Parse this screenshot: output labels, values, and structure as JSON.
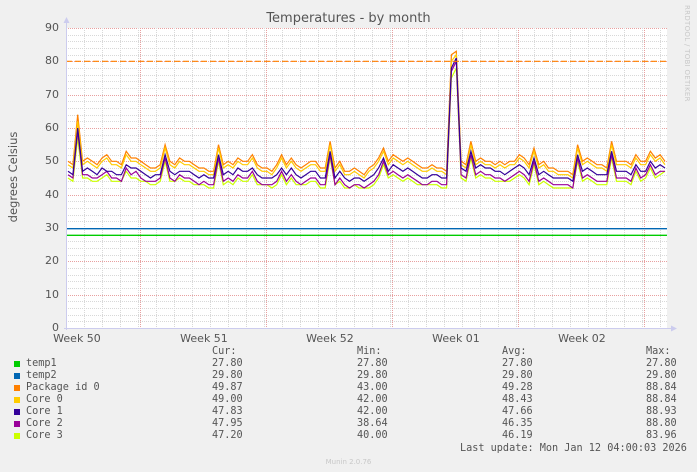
{
  "title": "Temperatures - by month",
  "y_axis_label": "degrees Celsius",
  "watermark": "RRDTOOL / TOBI OETIKER",
  "footer": "Munin 2.0.76",
  "last_update": "Last update: Mon Jan 12 04:00:03 2026",
  "legend_headers": {
    "cur": "Cur:",
    "min": "Min:",
    "avg": "Avg:",
    "max": "Max:"
  },
  "legend": [
    {
      "name": "temp1",
      "color": "#00cc00",
      "cur": "27.80",
      "min": "27.80",
      "avg": "27.80",
      "max": "27.80"
    },
    {
      "name": "temp2",
      "color": "#0066b3",
      "cur": "29.80",
      "min": "29.80",
      "avg": "29.80",
      "max": "29.80"
    },
    {
      "name": "Package id 0",
      "color": "#ff8000",
      "cur": "49.87",
      "min": "43.00",
      "avg": "49.28",
      "max": "88.84"
    },
    {
      "name": "Core 0",
      "color": "#ffcc00",
      "cur": "49.00",
      "min": "42.00",
      "avg": "48.43",
      "max": "88.84"
    },
    {
      "name": "Core 1",
      "color": "#330099",
      "cur": "47.83",
      "min": "42.00",
      "avg": "47.66",
      "max": "88.93"
    },
    {
      "name": "Core 2",
      "color": "#990099",
      "cur": "47.95",
      "min": "38.64",
      "avg": "46.35",
      "max": "88.80"
    },
    {
      "name": "Core 3",
      "color": "#ccff00",
      "cur": "47.20",
      "min": "40.00",
      "avg": "46.19",
      "max": "83.96"
    }
  ],
  "chart_data": {
    "type": "line",
    "title": "Temperatures - by month",
    "xlabel": "",
    "ylabel": "degrees Celsius",
    "ylim": [
      0,
      90
    ],
    "yticks": [
      0,
      10,
      20,
      30,
      40,
      50,
      60,
      70,
      80,
      90
    ],
    "xticks": [
      "Week 50",
      "Week 51",
      "Week 52",
      "Week 01",
      "Week 02"
    ],
    "grid": true,
    "threshold_line": {
      "value": 80,
      "color": "#ff8000",
      "style": "dashed"
    },
    "series": [
      {
        "name": "temp1",
        "color": "#00cc00",
        "constant": 27.8
      },
      {
        "name": "temp2",
        "color": "#0066b3",
        "constant": 29.8
      },
      {
        "name": "Package id 0",
        "color": "#ff8000",
        "values": [
          50,
          49,
          64,
          50,
          51,
          50,
          49,
          51,
          52,
          50,
          50,
          49,
          53,
          51,
          51,
          50,
          49,
          48,
          48,
          49,
          55,
          50,
          49,
          51,
          50,
          50,
          49,
          48,
          48,
          47,
          47,
          55,
          49,
          50,
          49,
          51,
          50,
          50,
          52,
          49,
          48,
          48,
          47,
          49,
          52,
          49,
          51,
          49,
          48,
          49,
          50,
          50,
          48,
          48,
          56,
          48,
          50,
          47,
          47,
          48,
          47,
          46,
          48,
          49,
          51,
          54,
          50,
          52,
          51,
          50,
          51,
          50,
          49,
          48,
          48,
          49,
          48,
          48,
          47,
          82,
          83,
          50,
          49,
          56,
          50,
          51,
          50,
          50,
          49,
          50,
          49,
          50,
          50,
          52,
          51,
          49,
          54,
          49,
          50,
          48,
          48,
          47,
          47,
          47,
          46,
          55,
          50,
          51,
          50,
          49,
          49,
          48,
          56,
          50,
          50,
          50,
          49,
          52,
          50,
          50,
          53,
          51,
          52,
          50
        ]
      },
      {
        "name": "Core 0",
        "color": "#ffcc00",
        "values": [
          49,
          48,
          62,
          49,
          50,
          49,
          48,
          50,
          51,
          49,
          49,
          48,
          52,
          50,
          50,
          49,
          48,
          47,
          47,
          48,
          54,
          49,
          48,
          50,
          49,
          49,
          48,
          47,
          47,
          46,
          46,
          54,
          48,
          49,
          48,
          50,
          49,
          49,
          51,
          48,
          47,
          47,
          46,
          48,
          51,
          48,
          50,
          48,
          47,
          48,
          49,
          49,
          47,
          47,
          55,
          47,
          49,
          46,
          46,
          47,
          46,
          45,
          47,
          48,
          50,
          53,
          49,
          51,
          50,
          49,
          50,
          49,
          48,
          47,
          47,
          48,
          47,
          47,
          46,
          80,
          82,
          49,
          48,
          55,
          49,
          50,
          49,
          49,
          48,
          49,
          48,
          49,
          49,
          51,
          50,
          48,
          53,
          48,
          49,
          47,
          47,
          46,
          46,
          46,
          45,
          54,
          49,
          50,
          49,
          48,
          48,
          47,
          55,
          49,
          49,
          49,
          48,
          51,
          49,
          49,
          52,
          50,
          51,
          49
        ]
      },
      {
        "name": "Core 1",
        "color": "#330099",
        "values": [
          47,
          46,
          60,
          47,
          48,
          47,
          46,
          48,
          47,
          47,
          46,
          46,
          49,
          48,
          48,
          47,
          46,
          45,
          46,
          46,
          52,
          47,
          46,
          47,
          47,
          47,
          46,
          45,
          46,
          45,
          45,
          52,
          46,
          47,
          46,
          48,
          47,
          47,
          48,
          46,
          45,
          45,
          45,
          46,
          48,
          46,
          48,
          46,
          45,
          46,
          47,
          47,
          45,
          45,
          53,
          45,
          47,
          45,
          44,
          45,
          45,
          44,
          45,
          46,
          48,
          51,
          47,
          49,
          48,
          47,
          48,
          47,
          46,
          45,
          45,
          46,
          46,
          45,
          45,
          78,
          81,
          48,
          47,
          53,
          48,
          49,
          48,
          48,
          47,
          47,
          46,
          47,
          48,
          49,
          48,
          46,
          51,
          46,
          47,
          46,
          45,
          45,
          45,
          45,
          44,
          52,
          47,
          48,
          47,
          46,
          46,
          46,
          53,
          47,
          47,
          47,
          46,
          49,
          47,
          47,
          50,
          48,
          49,
          48
        ]
      },
      {
        "name": "Core 2",
        "color": "#990099",
        "values": [
          46,
          45,
          59,
          46,
          46,
          45,
          45,
          46,
          47,
          45,
          45,
          44,
          48,
          46,
          47,
          45,
          44,
          44,
          44,
          45,
          51,
          45,
          44,
          46,
          45,
          45,
          44,
          43,
          44,
          43,
          43,
          51,
          44,
          45,
          44,
          46,
          45,
          45,
          47,
          44,
          43,
          43,
          43,
          44,
          47,
          44,
          46,
          44,
          43,
          44,
          45,
          45,
          43,
          43,
          52,
          43,
          45,
          43,
          42,
          43,
          43,
          42,
          43,
          44,
          46,
          50,
          46,
          47,
          46,
          45,
          46,
          45,
          44,
          43,
          43,
          44,
          44,
          43,
          43,
          77,
          80,
          46,
          45,
          52,
          46,
          47,
          46,
          46,
          45,
          45,
          44,
          45,
          46,
          47,
          46,
          44,
          50,
          44,
          45,
          44,
          43,
          43,
          43,
          43,
          42,
          51,
          45,
          46,
          45,
          44,
          44,
          44,
          52,
          45,
          45,
          45,
          44,
          48,
          45,
          46,
          49,
          46,
          47,
          47
        ]
      },
      {
        "name": "Core 3",
        "color": "#ccff00",
        "values": [
          45,
          44,
          57,
          45,
          45,
          44,
          44,
          45,
          46,
          44,
          44,
          44,
          47,
          45,
          45,
          44,
          44,
          43,
          43,
          44,
          50,
          44,
          44,
          45,
          44,
          44,
          43,
          43,
          43,
          42,
          42,
          50,
          43,
          44,
          43,
          45,
          44,
          44,
          46,
          43,
          43,
          43,
          42,
          43,
          46,
          43,
          45,
          43,
          43,
          43,
          44,
          44,
          42,
          42,
          51,
          43,
          44,
          42,
          42,
          43,
          42,
          42,
          42,
          43,
          45,
          49,
          45,
          46,
          45,
          44,
          45,
          44,
          43,
          43,
          43,
          43,
          43,
          42,
          42,
          75,
          78,
          45,
          44,
          51,
          45,
          46,
          45,
          45,
          44,
          44,
          44,
          44,
          45,
          46,
          45,
          43,
          49,
          43,
          44,
          43,
          42,
          42,
          42,
          42,
          42,
          50,
          44,
          45,
          44,
          43,
          43,
          43,
          51,
          44,
          44,
          44,
          43,
          47,
          44,
          45,
          48,
          45,
          46,
          47
        ]
      }
    ]
  }
}
